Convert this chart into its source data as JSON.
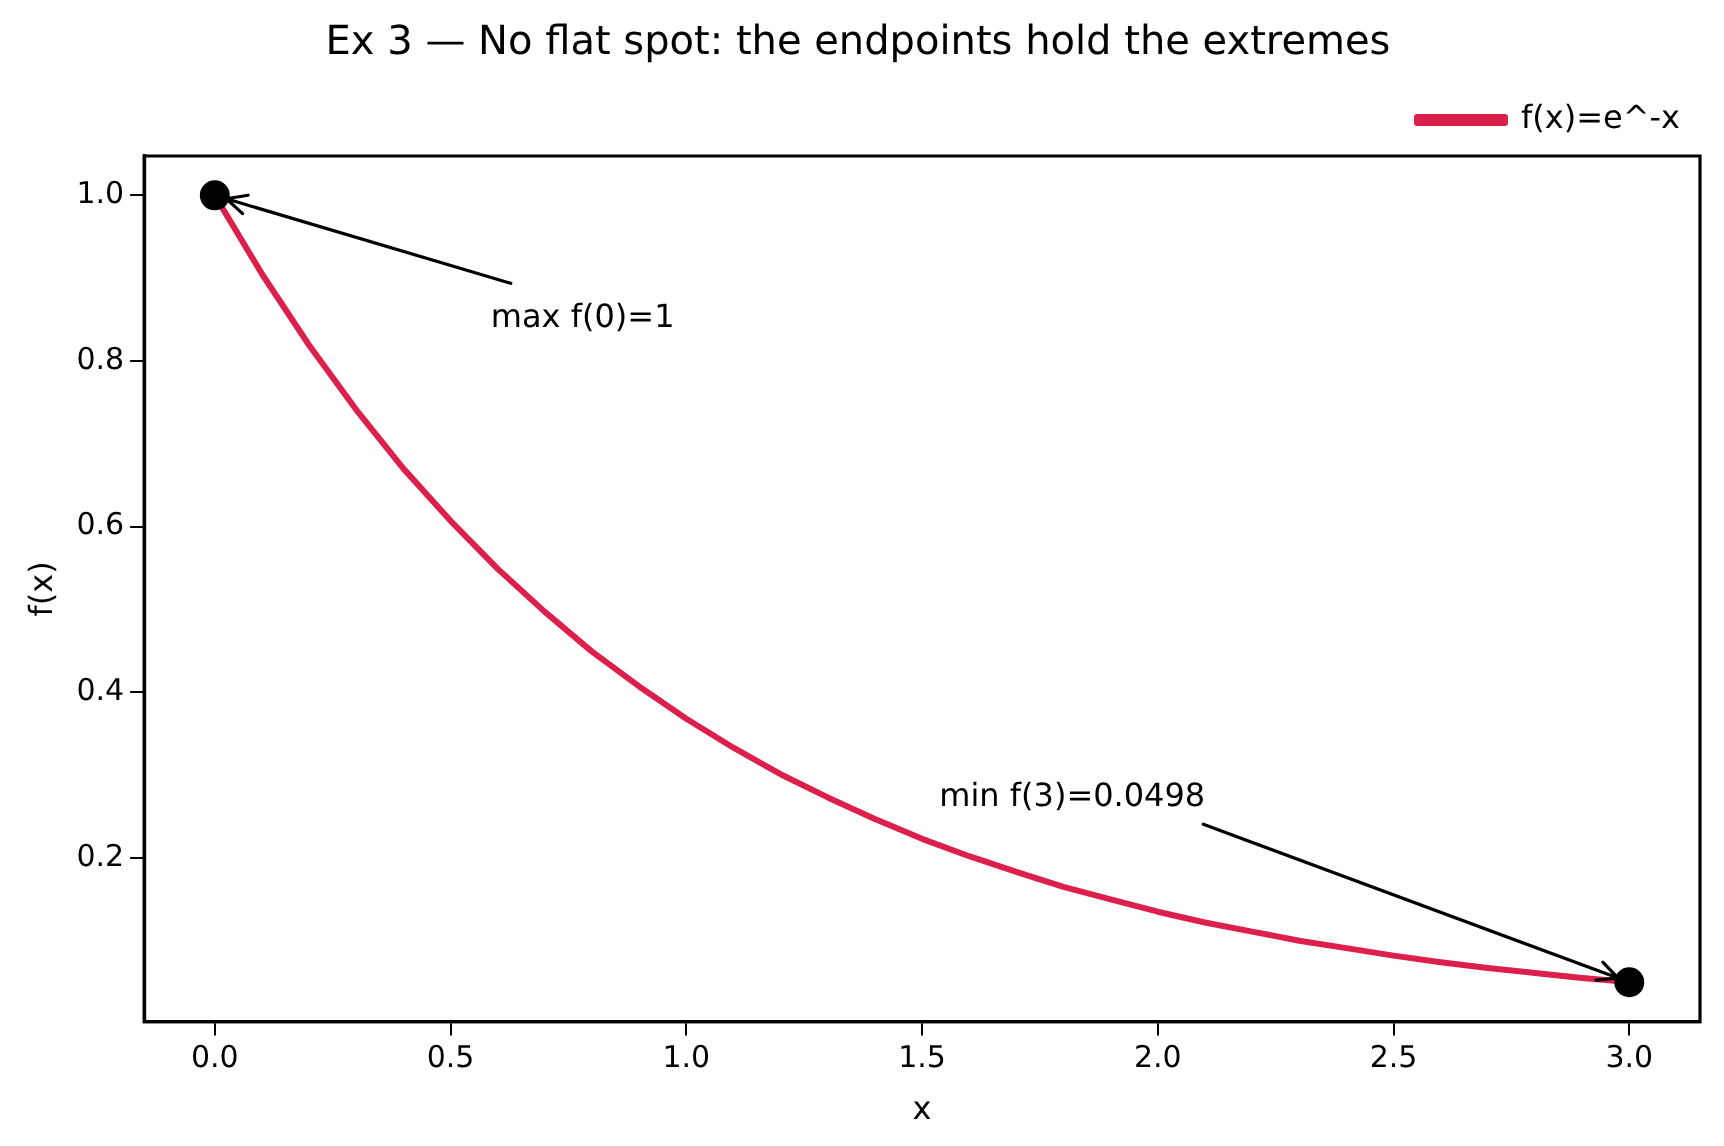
{
  "chart_data": {
    "type": "line",
    "title": "Ex 3 — No flat spot: the endpoints hold the extremes",
    "xlabel": "x",
    "ylabel": "f(x)",
    "x": [
      0,
      0.1,
      0.2,
      0.3,
      0.4,
      0.5,
      0.6,
      0.7,
      0.8,
      0.9,
      1,
      1.1,
      1.2,
      1.3,
      1.4,
      1.5,
      1.6,
      1.7,
      1.8,
      1.9,
      2,
      2.1,
      2.2,
      2.3,
      2.4,
      2.5,
      2.6,
      2.7,
      2.8,
      2.9,
      3
    ],
    "series": [
      {
        "name": "f(x)=e^-x",
        "color": "#dc1f4b",
        "values": [
          1,
          0.905,
          0.819,
          0.741,
          0.67,
          0.607,
          0.549,
          0.497,
          0.449,
          0.407,
          0.368,
          0.333,
          0.301,
          0.273,
          0.247,
          0.223,
          0.202,
          0.183,
          0.165,
          0.15,
          0.135,
          0.122,
          0.111,
          0.1,
          0.091,
          0.082,
          0.074,
          0.067,
          0.061,
          0.055,
          0.05
        ]
      },
      {
        "type": "scatter",
        "color": "#000000",
        "marker": "circle",
        "x": [
          0,
          3
        ],
        "values": [
          1,
          0.0498
        ]
      }
    ],
    "annotations": [
      {
        "text": "max f(0)=1",
        "x": 0,
        "y": 1
      },
      {
        "text": "min f(3)=0.0498",
        "x": 3,
        "y": 0.0498
      }
    ],
    "xlim": [
      -0.15,
      3.15
    ],
    "xticks": [
      {
        "value": 0,
        "label": "0.0"
      },
      0.5,
      {
        "value": 1,
        "label": "1.0"
      },
      1.5,
      {
        "value": 2,
        "label": "2.0"
      },
      2.5,
      {
        "value": 3,
        "label": "3.0"
      }
    ],
    "ylim": [
      0.0023,
      1.0475
    ],
    "yticks": [
      0.2,
      0.4,
      0.6,
      0.8,
      {
        "value": 1,
        "label": "1.0"
      }
    ],
    "grid": false,
    "legend": "top right"
  }
}
